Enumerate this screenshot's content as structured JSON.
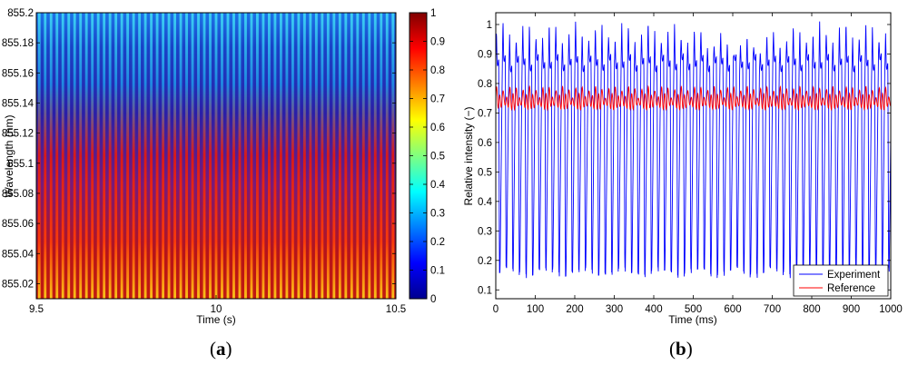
{
  "panel_labels": {
    "a": {
      "open": "(",
      "letter": "a",
      "close": ")"
    },
    "b": {
      "open": "(",
      "letter": "b",
      "close": ")"
    }
  },
  "chart_data": [
    {
      "type": "heatmap",
      "title": "",
      "xlabel": "Time (s)",
      "ylabel": "Wavelength (nm)",
      "xlim": [
        9.5,
        10.5
      ],
      "ylim": [
        855.01,
        855.2
      ],
      "xticks": [
        "9.5",
        "10",
        "10.5"
      ],
      "yticks": [
        "855.02",
        "855.04",
        "855.06",
        "855.08",
        "855.1",
        "855.12",
        "855.14",
        "855.16",
        "855.18",
        "855.2"
      ],
      "colorbar": {
        "range": [
          0,
          1
        ],
        "ticks": [
          "0",
          "0.1",
          "0.2",
          "0.3",
          "0.4",
          "0.5",
          "0.6",
          "0.7",
          "0.8",
          "0.9",
          "1"
        ],
        "colormap": "jet"
      },
      "stripe_count": 61,
      "description": "Vertical periodic stripes; intensity highest near 855.02-855.1 nm, decreasing towards 855.2 nm"
    },
    {
      "type": "line",
      "title": "",
      "xlabel": "Time (ms)",
      "ylabel": "Relative intensity (−)",
      "xlim": [
        0,
        1000
      ],
      "ylim": [
        0.07,
        1.04
      ],
      "xticks": [
        "0",
        "100",
        "200",
        "300",
        "400",
        "500",
        "600",
        "700",
        "800",
        "900",
        "1000"
      ],
      "yticks": [
        "0.1",
        "0.2",
        "0.3",
        "0.4",
        "0.5",
        "0.6",
        "0.7",
        "0.8",
        "0.9",
        "1"
      ],
      "legend_position": "bottom-right",
      "series": [
        {
          "name": "Experiment",
          "color": "#0000ff",
          "period_ms": 16.7,
          "peak": 0.98,
          "trough": 0.15,
          "shoulder": 0.87
        },
        {
          "name": "Reference",
          "color": "#ff0000",
          "period_ms": 16.7,
          "mean": 0.745,
          "amplitude": 0.025
        }
      ]
    }
  ]
}
